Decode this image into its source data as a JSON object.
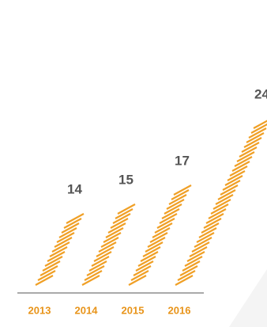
{
  "chart_data": {
    "type": "bar",
    "categories": [
      "2013",
      "2014",
      "2015",
      "2016"
    ],
    "values": [
      14,
      15,
      17,
      24
    ],
    "color": "#f0a026",
    "label_color": "#e8941a",
    "value_color": "#555555"
  }
}
